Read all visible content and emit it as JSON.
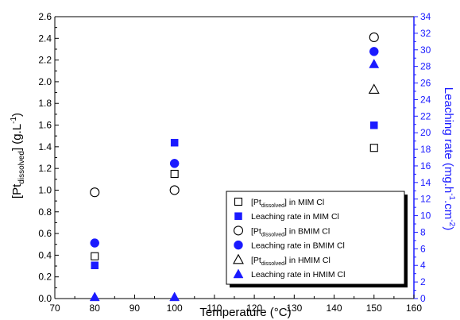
{
  "chart_data": {
    "type": "scatter",
    "title": "",
    "x_axis": {
      "label": "Temperature (°C)",
      "min": 70,
      "max": 160,
      "ticks": [
        70,
        80,
        90,
        100,
        110,
        120,
        130,
        140,
        150,
        160
      ]
    },
    "y_left": {
      "label_main": "[Pt",
      "label_sub": "dissolved",
      "label_tail": "] (g.L",
      "label_sup": "-1",
      "label_end": ")",
      "min": 0,
      "max": 2.6,
      "ticks": [
        "0.0",
        "0.2",
        "0.4",
        "0.6",
        "0.8",
        "1.0",
        "1.2",
        "1.4",
        "1.6",
        "1.8",
        "2.0",
        "2.2",
        "2.4",
        "2.6"
      ],
      "color": "#000000"
    },
    "y_right": {
      "label_main": "Leaching rate (mg.h",
      "label_sup1": "-1",
      "label_mid": ".cm",
      "label_sup2": "-2",
      "label_end": ")",
      "min": 0,
      "max": 34,
      "ticks": [
        0,
        2,
        4,
        6,
        8,
        10,
        12,
        14,
        16,
        18,
        20,
        22,
        24,
        26,
        28,
        30,
        32,
        34
      ],
      "color": "#1a1aff"
    },
    "legend_position": "center-right",
    "series": [
      {
        "legend_prefix": "[Pt",
        "legend_sub": "dissolved",
        "legend_suffix": "] in MIM Cl",
        "marker": "square",
        "filled": false,
        "axis": "left",
        "color": "#000000",
        "points": [
          {
            "x": 80,
            "y": 0.39
          },
          {
            "x": 100,
            "y": 1.15
          },
          {
            "x": 150,
            "y": 1.39
          }
        ]
      },
      {
        "legend_prefix": "Leaching rate in MIM Cl",
        "legend_sub": "",
        "legend_suffix": "",
        "marker": "square",
        "filled": true,
        "axis": "right",
        "color": "#1a1aff",
        "points": [
          {
            "x": 80,
            "y": 4.0
          },
          {
            "x": 100,
            "y": 18.8
          },
          {
            "x": 150,
            "y": 20.9
          }
        ]
      },
      {
        "legend_prefix": "[Pt",
        "legend_sub": "dissolved",
        "legend_suffix": "] in BMIM Cl",
        "marker": "circle",
        "filled": false,
        "axis": "left",
        "color": "#000000",
        "points": [
          {
            "x": 80,
            "y": 0.98
          },
          {
            "x": 100,
            "y": 1.0
          },
          {
            "x": 150,
            "y": 2.41
          }
        ]
      },
      {
        "legend_prefix": "Leaching rate in BMIM Cl",
        "legend_sub": "",
        "legend_suffix": "",
        "marker": "circle",
        "filled": true,
        "axis": "right",
        "color": "#1a1aff",
        "points": [
          {
            "x": 80,
            "y": 6.7
          },
          {
            "x": 100,
            "y": 16.3
          },
          {
            "x": 150,
            "y": 29.8
          }
        ]
      },
      {
        "legend_prefix": "[Pt",
        "legend_sub": "dissolved",
        "legend_suffix": "] in HMIM Cl",
        "marker": "triangle",
        "filled": false,
        "axis": "left",
        "color": "#000000",
        "points": [
          {
            "x": 150,
            "y": 1.93
          }
        ]
      },
      {
        "legend_prefix": "Leaching rate in HMIM Cl",
        "legend_sub": "",
        "legend_suffix": "",
        "marker": "triangle",
        "filled": true,
        "axis": "right",
        "color": "#1a1aff",
        "points": [
          {
            "x": 80,
            "y": 0.2
          },
          {
            "x": 100,
            "y": 0.2
          },
          {
            "x": 150,
            "y": 28.3
          }
        ]
      }
    ]
  }
}
